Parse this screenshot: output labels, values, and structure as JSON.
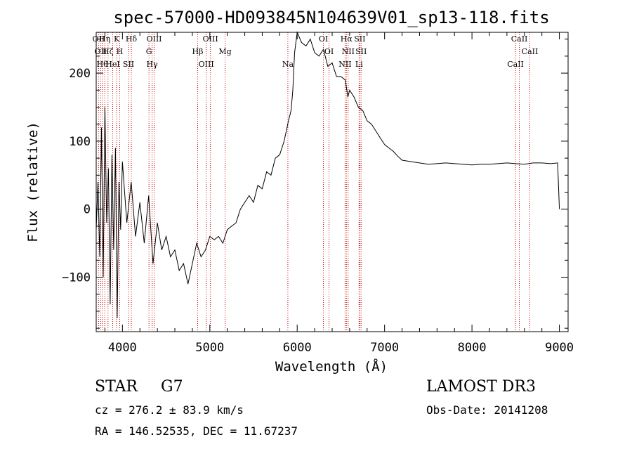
{
  "chart_data": {
    "type": "line",
    "title": "spec-57000-HD093845N104639V01_sp13-118.fits",
    "xlabel": "Wavelength (Å)",
    "ylabel": "Flux (relative)",
    "xlim": [
      3700,
      9100
    ],
    "ylim": [
      -180,
      260
    ],
    "x_ticks": [
      4000,
      5000,
      6000,
      7000,
      8000,
      9000
    ],
    "y_ticks": [
      -100,
      0,
      100,
      200
    ],
    "grid": false,
    "line_color": "#000000",
    "marker_color": "#cc0000",
    "series": [
      {
        "x": [
          3700,
          3720,
          3740,
          3760,
          3780,
          3800,
          3820,
          3840,
          3860,
          3880,
          3900,
          3920,
          3940,
          3960,
          3980,
          4000,
          4050,
          4100,
          4150,
          4200,
          4250,
          4300,
          4350,
          4400,
          4450,
          4500,
          4550,
          4600,
          4650,
          4700,
          4750,
          4800,
          4850,
          4900,
          4950,
          5000,
          5050,
          5100,
          5150,
          5200,
          5250,
          5300,
          5350,
          5400,
          5450,
          5500,
          5550,
          5600,
          5650,
          5700,
          5750,
          5800,
          5850,
          5900,
          5930,
          5950,
          5970,
          6000,
          6050,
          6100,
          6150,
          6200,
          6250,
          6300,
          6350,
          6400,
          6450,
          6500,
          6550,
          6580,
          6600,
          6650,
          6700,
          6750,
          6800,
          6850,
          6900,
          6950,
          7000,
          7050,
          7100,
          7150,
          7200,
          7300,
          7400,
          7500,
          7600,
          7700,
          7800,
          7900,
          8000,
          8100,
          8200,
          8300,
          8400,
          8500,
          8600,
          8700,
          8800,
          8900,
          8980,
          9000
        ],
        "y": [
          -30,
          40,
          -70,
          120,
          -100,
          150,
          -20,
          60,
          -140,
          80,
          -60,
          90,
          -160,
          40,
          -30,
          70,
          -20,
          40,
          -40,
          10,
          -50,
          20,
          -80,
          -20,
          -60,
          -40,
          -70,
          -60,
          -90,
          -80,
          -110,
          -80,
          -50,
          -70,
          -60,
          -40,
          -45,
          -40,
          -50,
          -30,
          -25,
          -20,
          0,
          10,
          20,
          10,
          35,
          30,
          55,
          50,
          75,
          80,
          100,
          130,
          145,
          175,
          230,
          265,
          245,
          240,
          250,
          230,
          225,
          235,
          210,
          215,
          195,
          195,
          190,
          165,
          175,
          165,
          150,
          145,
          130,
          125,
          115,
          105,
          95,
          90,
          85,
          78,
          72,
          70,
          68,
          66,
          67,
          68,
          67,
          66,
          65,
          66,
          66,
          67,
          68,
          67,
          66,
          68,
          68,
          67,
          68,
          0
        ]
      }
    ],
    "line_markers": [
      {
        "wavelength": 3727,
        "label": "OII"
      },
      {
        "wavelength": 3750,
        "label": "OII"
      },
      {
        "wavelength": 3770,
        "label": "Hθ"
      },
      {
        "wavelength": 3798,
        "label": "Hη"
      },
      {
        "wavelength": 3835,
        "label": "Hζ"
      },
      {
        "wavelength": 3889,
        "label": "HeI"
      },
      {
        "wavelength": 3934,
        "label": "K"
      },
      {
        "wavelength": 3969,
        "label": "H"
      },
      {
        "wavelength": 4070,
        "label": "SII"
      },
      {
        "wavelength": 4102,
        "label": "Hδ"
      },
      {
        "wavelength": 4304,
        "label": "G"
      },
      {
        "wavelength": 4340,
        "label": "Hγ"
      },
      {
        "wavelength": 4363,
        "label": "OIII"
      },
      {
        "wavelength": 4861,
        "label": "Hβ"
      },
      {
        "wavelength": 4959,
        "label": "OIII"
      },
      {
        "wavelength": 5007,
        "label": "OIII"
      },
      {
        "wavelength": 5175,
        "label": "Mg"
      },
      {
        "wavelength": 5893,
        "label": "Na"
      },
      {
        "wavelength": 6300,
        "label": "OI"
      },
      {
        "wavelength": 6364,
        "label": "OI"
      },
      {
        "wavelength": 6548,
        "label": "NII"
      },
      {
        "wavelength": 6563,
        "label": "Hα"
      },
      {
        "wavelength": 6583,
        "label": "NII"
      },
      {
        "wavelength": 6708,
        "label": "Li"
      },
      {
        "wavelength": 6716,
        "label": "SII"
      },
      {
        "wavelength": 6731,
        "label": "SII"
      },
      {
        "wavelength": 8498,
        "label": "CaII"
      },
      {
        "wavelength": 8542,
        "label": "CaII"
      },
      {
        "wavelength": 8662,
        "label": "CaII"
      }
    ]
  },
  "info": {
    "object_class": "STAR",
    "subclass": "G7",
    "survey": "LAMOST DR3",
    "redshift": "cz = 276.2 ± 83.9 km/s",
    "obs_date": "Obs-Date: 20141208",
    "coords": "RA = 146.52535, DEC =  11.67237"
  }
}
